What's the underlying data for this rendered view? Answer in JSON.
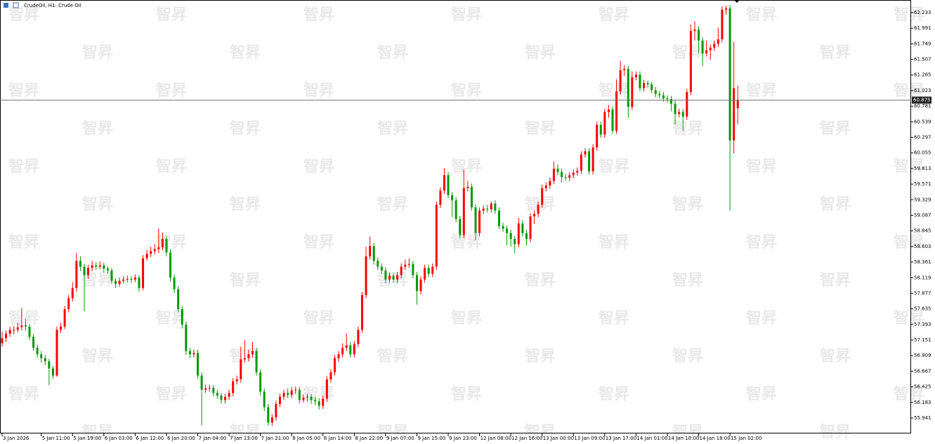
{
  "chart_data": {
    "type": "candlestick",
    "title": "CrudeOil, H1:  Crude Oil",
    "watermark": "智昇",
    "up_color": "#ff0000",
    "down_color": "#009a00",
    "last_price": 60.875,
    "ylim": [
      55.701,
      62.429
    ],
    "yticks": [
      62.233,
      61.991,
      61.749,
      61.507,
      61.265,
      61.023,
      60.781,
      60.539,
      60.297,
      60.055,
      59.813,
      59.571,
      59.329,
      59.087,
      58.845,
      58.603,
      58.361,
      58.119,
      57.877,
      57.635,
      57.393,
      57.151,
      56.909,
      56.667,
      56.425,
      56.183,
      55.941
    ],
    "xlim": [
      -0.54,
      232.3
    ],
    "xticks": [
      {
        "value": 0,
        "label": "3 Jan 2026"
      },
      {
        "value": 10,
        "label": "5 Jan 11:00"
      },
      {
        "value": 18,
        "label": "5 Jan 19:00"
      },
      {
        "value": 26,
        "label": "6 Jan 03:00"
      },
      {
        "value": 34,
        "label": "6 Jan 12:00"
      },
      {
        "value": 42,
        "label": "6 Jan 20:00"
      },
      {
        "value": 50,
        "label": "7 Jan 04:00"
      },
      {
        "value": 58,
        "label": "7 Jan 13:00"
      },
      {
        "value": 66,
        "label": "7 Jan 21:00"
      },
      {
        "value": 74,
        "label": "8 Jan 05:00"
      },
      {
        "value": 82,
        "label": "8 Jan 14:00"
      },
      {
        "value": 90,
        "label": "8 Jan 22:00"
      },
      {
        "value": 98,
        "label": "9 Jan 07:00"
      },
      {
        "value": 106,
        "label": "9 Jan 15:00"
      },
      {
        "value": 114,
        "label": "9 Jan 23:00"
      },
      {
        "value": 122,
        "label": "12 Jan 08:00"
      },
      {
        "value": 130,
        "label": "12 Jan 16:00"
      },
      {
        "value": 138,
        "label": "13 Jan 00:00"
      },
      {
        "value": 146,
        "label": "13 Jan 09:00"
      },
      {
        "value": 154,
        "label": "13 Jan 17:00"
      },
      {
        "value": 162,
        "label": "14 Jan 01:00"
      },
      {
        "value": 170,
        "label": "14 Jan 10:00"
      },
      {
        "value": 178,
        "label": "14 Jan 18:00"
      },
      {
        "value": 186,
        "label": "15 Jan 02:00"
      }
    ],
    "candles": [
      [
        57.1,
        57.28,
        57.05,
        57.18
      ],
      [
        57.18,
        57.3,
        57.12,
        57.25
      ],
      [
        57.25,
        57.36,
        57.2,
        57.31
      ],
      [
        57.31,
        57.37,
        57.24,
        57.31
      ],
      [
        57.31,
        57.42,
        57.27,
        57.35
      ],
      [
        57.35,
        57.65,
        57.3,
        57.38
      ],
      [
        57.38,
        57.48,
        57.3,
        57.36
      ],
      [
        57.36,
        57.4,
        57.15,
        57.2
      ],
      [
        57.2,
        57.25,
        56.98,
        57.03
      ],
      [
        57.03,
        57.08,
        56.88,
        56.93
      ],
      [
        56.93,
        56.98,
        56.8,
        56.87
      ],
      [
        56.87,
        56.92,
        56.76,
        56.82
      ],
      [
        56.82,
        56.86,
        56.45,
        56.71
      ],
      [
        56.71,
        56.75,
        56.55,
        56.6
      ],
      [
        56.6,
        57.36,
        56.58,
        57.31
      ],
      [
        57.31,
        57.42,
        57.26,
        57.36
      ],
      [
        57.36,
        57.68,
        57.32,
        57.63
      ],
      [
        57.63,
        57.85,
        57.58,
        57.8
      ],
      [
        57.8,
        58.05,
        57.75,
        57.96
      ],
      [
        57.96,
        58.5,
        57.9,
        58.38
      ],
      [
        58.38,
        58.45,
        58.22,
        58.29
      ],
      [
        58.29,
        58.33,
        57.6,
        58.16
      ],
      [
        58.16,
        58.32,
        58.1,
        58.27
      ],
      [
        58.27,
        58.38,
        58.22,
        58.31
      ],
      [
        58.31,
        58.36,
        58.24,
        58.29
      ],
      [
        58.29,
        58.37,
        58.25,
        58.31
      ],
      [
        58.31,
        58.35,
        58.2,
        58.26
      ],
      [
        58.26,
        58.3,
        58.18,
        58.23
      ],
      [
        58.23,
        58.27,
        58.02,
        58.07
      ],
      [
        58.07,
        58.11,
        57.96,
        58.02
      ],
      [
        58.02,
        58.12,
        57.98,
        58.07
      ],
      [
        58.07,
        58.14,
        58.03,
        58.09
      ],
      [
        58.09,
        58.15,
        58.05,
        58.1
      ],
      [
        58.1,
        58.14,
        58.04,
        58.09
      ],
      [
        58.09,
        58.17,
        58.05,
        58.12
      ],
      [
        58.12,
        58.16,
        57.9,
        57.96
      ],
      [
        57.96,
        58.47,
        57.92,
        58.42
      ],
      [
        58.42,
        58.55,
        58.38,
        58.49
      ],
      [
        58.49,
        58.6,
        58.44,
        58.53
      ],
      [
        58.53,
        58.64,
        58.48,
        58.56
      ],
      [
        58.56,
        58.88,
        58.5,
        58.59
      ],
      [
        58.59,
        58.82,
        58.54,
        58.72
      ],
      [
        58.72,
        58.76,
        58.45,
        58.51
      ],
      [
        58.51,
        58.56,
        58.06,
        58.12
      ],
      [
        58.12,
        58.17,
        57.88,
        57.94
      ],
      [
        57.94,
        57.99,
        57.58,
        57.63
      ],
      [
        57.63,
        57.68,
        57.33,
        57.39
      ],
      [
        57.39,
        57.44,
        56.92,
        56.98
      ],
      [
        56.98,
        57.03,
        56.87,
        56.93
      ],
      [
        56.93,
        57.0,
        56.88,
        56.95
      ],
      [
        56.95,
        57.0,
        56.55,
        56.6
      ],
      [
        56.6,
        56.65,
        55.83,
        56.38
      ],
      [
        56.38,
        56.46,
        56.33,
        56.4
      ],
      [
        56.4,
        56.46,
        56.35,
        56.41
      ],
      [
        56.41,
        56.45,
        56.28,
        56.33
      ],
      [
        56.33,
        56.38,
        56.24,
        56.29
      ],
      [
        56.29,
        56.33,
        56.16,
        56.22
      ],
      [
        56.22,
        56.32,
        56.17,
        56.27
      ],
      [
        56.27,
        56.38,
        56.22,
        56.33
      ],
      [
        56.33,
        56.56,
        56.28,
        56.51
      ],
      [
        56.51,
        56.6,
        56.46,
        56.54
      ],
      [
        56.54,
        57.05,
        56.49,
        56.85
      ],
      [
        56.85,
        57.15,
        56.8,
        56.87
      ],
      [
        56.87,
        57.0,
        56.82,
        56.93
      ],
      [
        56.93,
        57.12,
        56.88,
        56.98
      ],
      [
        56.98,
        57.03,
        56.6,
        56.65
      ],
      [
        56.65,
        56.7,
        56.29,
        56.35
      ],
      [
        56.35,
        56.4,
        56.05,
        56.11
      ],
      [
        56.11,
        56.16,
        55.82,
        55.87
      ],
      [
        55.87,
        56.0,
        55.82,
        55.95
      ],
      [
        55.95,
        56.21,
        55.9,
        56.16
      ],
      [
        56.16,
        56.32,
        56.11,
        56.27
      ],
      [
        56.27,
        56.38,
        56.22,
        56.33
      ],
      [
        56.33,
        56.4,
        56.25,
        56.3
      ],
      [
        56.3,
        56.42,
        56.25,
        56.37
      ],
      [
        56.37,
        56.43,
        56.31,
        56.38
      ],
      [
        56.38,
        56.42,
        56.17,
        56.22
      ],
      [
        56.22,
        56.31,
        56.18,
        56.26
      ],
      [
        56.26,
        56.32,
        56.2,
        56.27
      ],
      [
        56.27,
        56.31,
        56.16,
        56.22
      ],
      [
        56.22,
        56.27,
        56.14,
        56.2
      ],
      [
        56.2,
        56.25,
        56.07,
        56.13
      ],
      [
        56.13,
        56.29,
        56.08,
        56.24
      ],
      [
        56.24,
        56.59,
        56.19,
        56.54
      ],
      [
        56.54,
        56.7,
        56.49,
        56.65
      ],
      [
        56.65,
        56.92,
        56.6,
        56.87
      ],
      [
        56.87,
        56.98,
        56.81,
        56.93
      ],
      [
        56.93,
        57.1,
        56.88,
        57.03
      ],
      [
        57.03,
        57.25,
        56.98,
        57.07
      ],
      [
        57.07,
        57.12,
        56.88,
        56.93
      ],
      [
        56.93,
        57.14,
        56.88,
        57.09
      ],
      [
        57.09,
        57.36,
        57.04,
        57.31
      ],
      [
        57.31,
        57.9,
        57.26,
        57.85
      ],
      [
        57.85,
        58.6,
        57.8,
        58.45
      ],
      [
        58.45,
        58.76,
        58.4,
        58.61
      ],
      [
        58.61,
        58.66,
        58.32,
        58.38
      ],
      [
        58.38,
        58.43,
        58.24,
        58.29
      ],
      [
        58.29,
        58.34,
        58.18,
        58.23
      ],
      [
        58.23,
        58.28,
        58.03,
        58.09
      ],
      [
        58.09,
        58.2,
        58.04,
        58.15
      ],
      [
        58.15,
        58.2,
        58.04,
        58.09
      ],
      [
        58.09,
        58.21,
        58.04,
        58.16
      ],
      [
        58.16,
        58.34,
        58.11,
        58.29
      ],
      [
        58.29,
        58.4,
        58.24,
        58.32
      ],
      [
        58.32,
        58.42,
        58.27,
        58.33
      ],
      [
        58.33,
        58.38,
        58.11,
        58.16
      ],
      [
        58.16,
        58.21,
        57.7,
        57.91
      ],
      [
        57.91,
        58.14,
        57.86,
        58.09
      ],
      [
        58.09,
        58.32,
        58.04,
        58.27
      ],
      [
        58.27,
        58.32,
        58.13,
        58.18
      ],
      [
        58.18,
        58.34,
        58.13,
        58.29
      ],
      [
        58.29,
        59.3,
        58.24,
        59.25
      ],
      [
        59.25,
        59.52,
        59.2,
        59.47
      ],
      [
        59.47,
        59.82,
        59.42,
        59.71
      ],
      [
        59.71,
        59.76,
        59.35,
        59.4
      ],
      [
        59.4,
        59.45,
        59.06,
        59.32
      ],
      [
        59.32,
        59.37,
        58.98,
        59.03
      ],
      [
        59.03,
        59.08,
        58.73,
        58.78
      ],
      [
        58.78,
        59.8,
        58.73,
        59.51
      ],
      [
        59.51,
        59.62,
        59.46,
        59.53
      ],
      [
        59.53,
        59.58,
        59.16,
        59.21
      ],
      [
        59.21,
        59.26,
        58.7,
        58.81
      ],
      [
        58.81,
        59.21,
        58.76,
        59.16
      ],
      [
        59.16,
        59.24,
        59.11,
        59.19
      ],
      [
        59.19,
        59.25,
        59.13,
        59.18
      ],
      [
        59.18,
        59.3,
        59.13,
        59.27
      ],
      [
        59.27,
        59.32,
        59.11,
        59.16
      ],
      [
        59.16,
        59.21,
        58.87,
        58.92
      ],
      [
        58.92,
        58.97,
        58.83,
        58.88
      ],
      [
        58.88,
        58.93,
        58.62,
        58.81
      ],
      [
        58.81,
        58.86,
        58.6,
        58.72
      ],
      [
        58.72,
        58.77,
        58.5,
        58.64
      ],
      [
        58.64,
        59.05,
        58.59,
        58.96
      ],
      [
        58.96,
        59.01,
        58.76,
        58.81
      ],
      [
        58.81,
        58.86,
        58.62,
        58.72
      ],
      [
        58.72,
        59.12,
        58.67,
        59.07
      ],
      [
        59.07,
        59.16,
        58.95,
        59.11
      ],
      [
        59.11,
        59.3,
        59.06,
        59.25
      ],
      [
        59.25,
        59.56,
        59.2,
        59.51
      ],
      [
        59.51,
        59.6,
        59.46,
        59.55
      ],
      [
        59.55,
        59.67,
        59.5,
        59.62
      ],
      [
        59.62,
        59.92,
        59.57,
        59.81
      ],
      [
        59.81,
        59.88,
        59.71,
        59.76
      ],
      [
        59.76,
        59.81,
        59.6,
        59.68
      ],
      [
        59.68,
        59.73,
        59.62,
        59.67
      ],
      [
        59.67,
        59.76,
        59.62,
        59.71
      ],
      [
        59.71,
        59.8,
        59.66,
        59.75
      ],
      [
        59.75,
        59.83,
        59.7,
        59.78
      ],
      [
        59.78,
        60.08,
        59.73,
        60.03
      ],
      [
        60.03,
        60.13,
        59.98,
        60.08
      ],
      [
        60.08,
        60.13,
        59.72,
        59.77
      ],
      [
        59.77,
        60.19,
        59.72,
        60.14
      ],
      [
        60.14,
        60.54,
        60.09,
        60.49
      ],
      [
        60.49,
        60.54,
        60.29,
        60.34
      ],
      [
        60.34,
        60.74,
        60.29,
        60.69
      ],
      [
        60.69,
        60.8,
        60.6,
        60.73
      ],
      [
        60.73,
        60.78,
        60.35,
        60.4
      ],
      [
        60.4,
        61.2,
        60.35,
        61.01
      ],
      [
        61.01,
        61.48,
        60.96,
        61.34
      ],
      [
        61.34,
        61.42,
        61.25,
        61.36
      ],
      [
        61.36,
        61.41,
        60.6,
        60.77
      ],
      [
        60.77,
        61.32,
        60.72,
        61.23
      ],
      [
        61.23,
        61.32,
        61.18,
        61.27
      ],
      [
        61.27,
        61.32,
        61.01,
        61.06
      ],
      [
        61.06,
        61.19,
        61.01,
        61.14
      ],
      [
        61.14,
        61.18,
        61.07,
        61.12
      ],
      [
        61.12,
        61.16,
        60.98,
        61.03
      ],
      [
        61.03,
        61.08,
        60.92,
        60.97
      ],
      [
        60.97,
        61.02,
        60.9,
        60.95
      ],
      [
        60.95,
        61.0,
        60.85,
        60.9
      ],
      [
        60.9,
        60.95,
        60.84,
        60.89
      ],
      [
        60.89,
        60.94,
        60.7,
        60.82
      ],
      [
        60.82,
        60.87,
        60.5,
        60.66
      ],
      [
        60.66,
        60.74,
        60.61,
        60.69
      ],
      [
        60.69,
        60.74,
        60.4,
        60.62
      ],
      [
        60.62,
        61.05,
        60.57,
        61.0
      ],
      [
        61.0,
        62.05,
        60.95,
        61.95
      ],
      [
        61.95,
        62.1,
        61.8,
        61.97
      ],
      [
        61.97,
        62.02,
        61.6,
        61.8
      ],
      [
        61.8,
        61.85,
        61.4,
        61.6
      ],
      [
        61.6,
        61.8,
        61.55,
        61.65
      ],
      [
        61.65,
        61.74,
        61.5,
        61.69
      ],
      [
        61.69,
        61.8,
        61.64,
        61.75
      ],
      [
        61.75,
        62.0,
        61.7,
        61.82
      ],
      [
        61.82,
        62.33,
        61.77,
        62.28
      ],
      [
        62.28,
        62.34,
        62.2,
        62.3
      ],
      [
        62.3,
        62.35,
        59.16,
        60.25
      ],
      [
        60.25,
        61.78,
        60.05,
        61.06
      ],
      [
        60.75,
        61.1,
        60.5,
        60.88
      ]
    ]
  }
}
